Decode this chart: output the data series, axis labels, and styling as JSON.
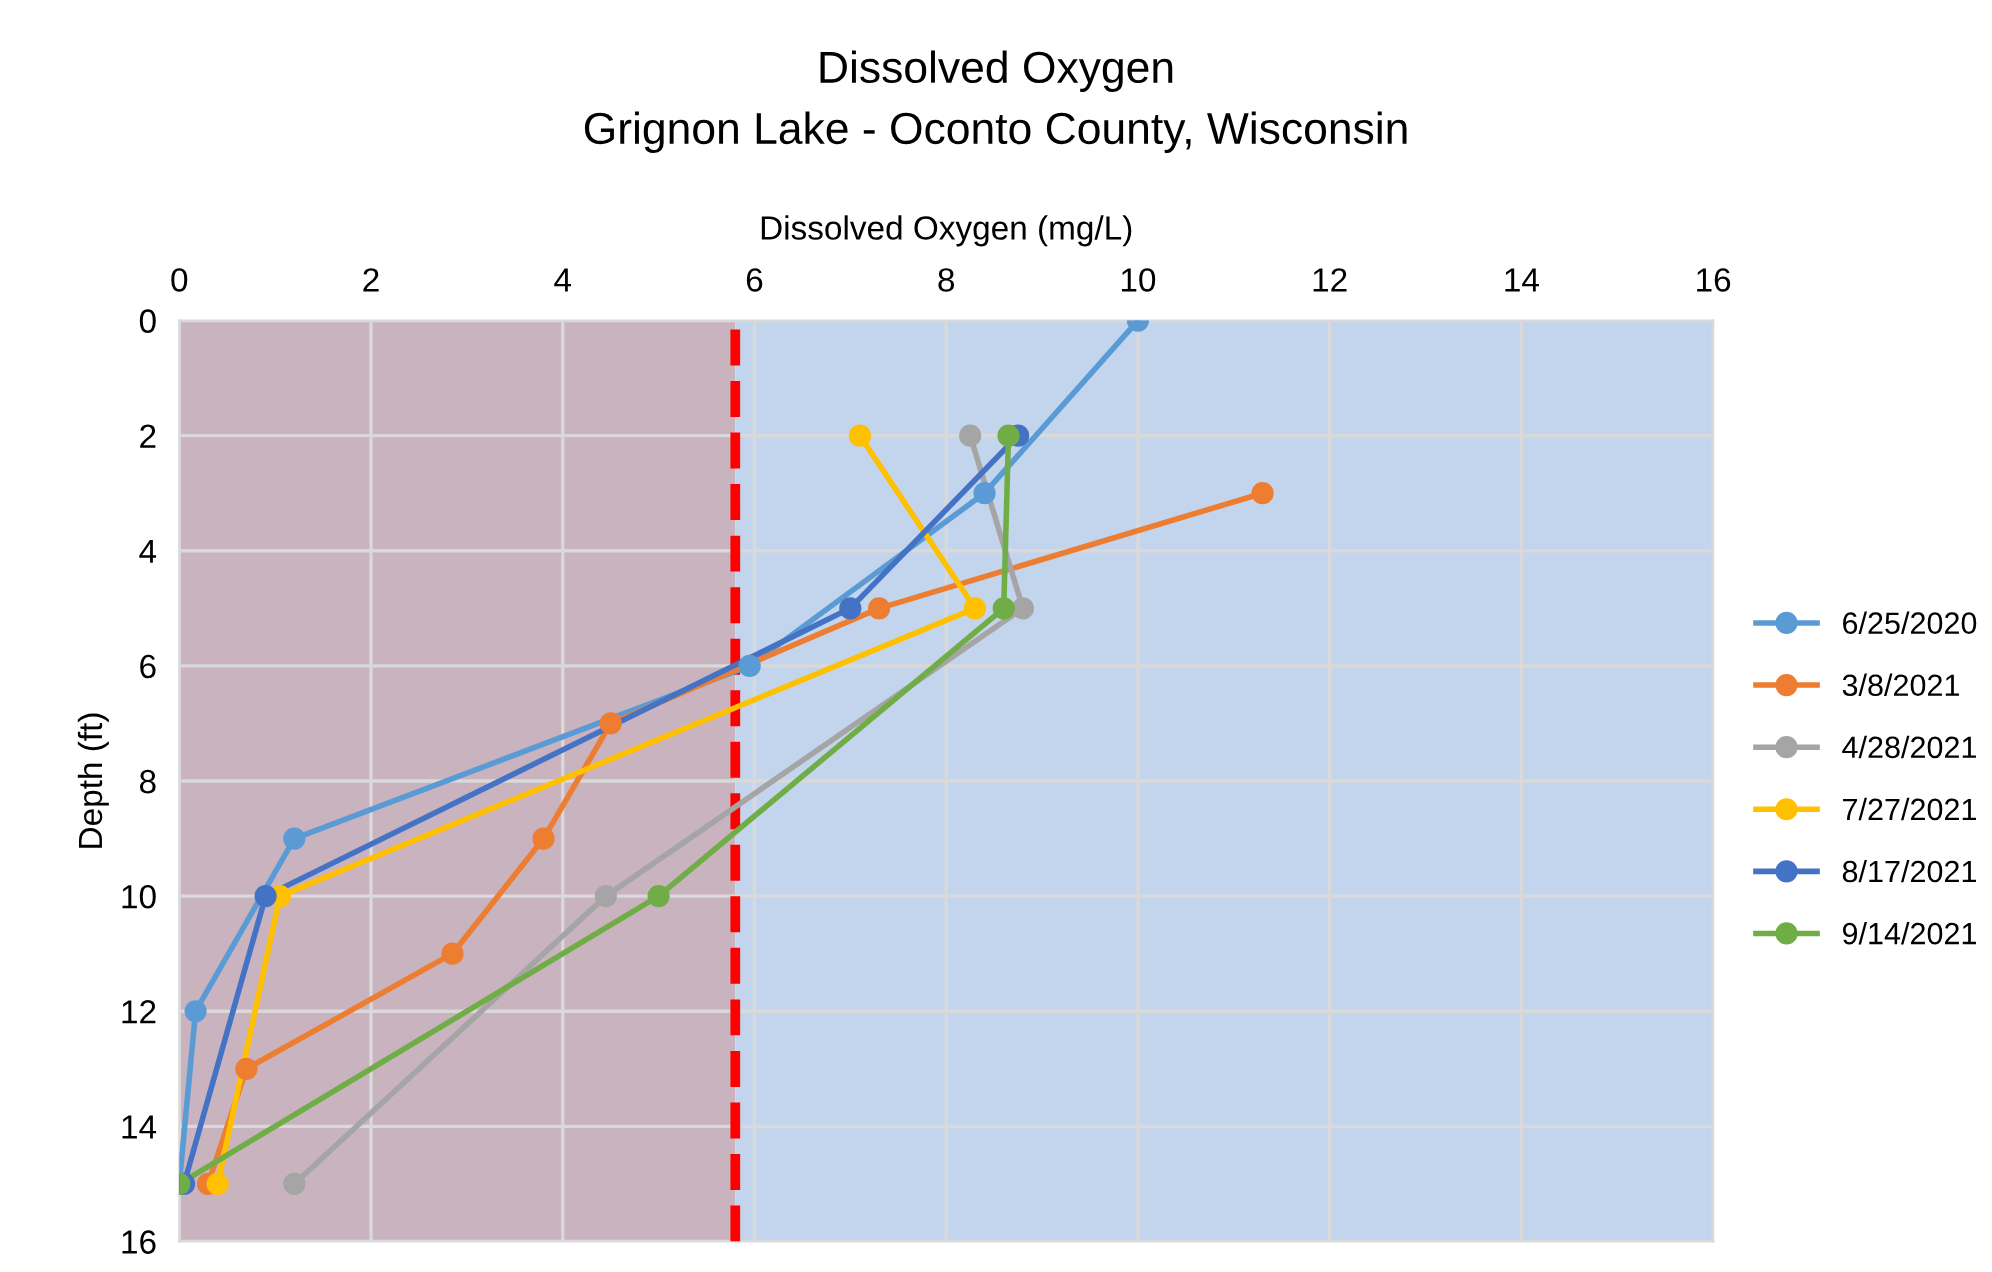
{
  "chart_data": {
    "type": "line",
    "title": "Dissolved Oxygen",
    "subtitle": "Grignon Lake - Oconto County, Wisconsin",
    "xlabel": "Dissolved Oxygen (mg/L)",
    "ylabel": "Depth (ft)",
    "xlim": [
      0,
      16
    ],
    "xticks": [
      0,
      2,
      4,
      6,
      8,
      10,
      12,
      14,
      16
    ],
    "ylim": [
      16,
      0
    ],
    "yticks": [
      0,
      2,
      4,
      6,
      8,
      10,
      12,
      14,
      16
    ],
    "grid": true,
    "legend": "right",
    "marker": "circle",
    "line_style": "solid",
    "bands": [
      {
        "axis": "x",
        "from": 0,
        "to": 5.8,
        "color": "#c8b3bf"
      },
      {
        "axis": "x",
        "from": 5.8,
        "to": 16,
        "color": "#c2d5ec"
      }
    ],
    "ref_lines": [
      {
        "axis": "x",
        "value": 5.8,
        "color": "#ff0000",
        "line_style": "dashed"
      }
    ],
    "series": [
      {
        "name": "6/25/2020",
        "color": "#5b9bd5",
        "x": [
          10,
          8.4,
          5.95,
          1.2,
          0.17,
          0
        ],
        "values": [
          0,
          3,
          6,
          9,
          12,
          15
        ]
      },
      {
        "name": "3/8/2021",
        "color": "#ed7d31",
        "x": [
          11.3,
          7.3,
          4.5,
          3.8,
          2.85,
          0.7,
          0.3
        ],
        "values": [
          3,
          5,
          7,
          9,
          11,
          13,
          15
        ]
      },
      {
        "name": "4/28/2021",
        "color": "#a5a5a5",
        "x": [
          8.25,
          8.8,
          4.45,
          1.2
        ],
        "values": [
          2,
          5,
          10,
          15
        ]
      },
      {
        "name": "7/27/2021",
        "color": "#ffc000",
        "x": [
          7.1,
          8.3,
          1.05,
          0.4
        ],
        "values": [
          2,
          5,
          10,
          15
        ]
      },
      {
        "name": "8/17/2021",
        "color": "#4472c4",
        "x": [
          8.75,
          7.0,
          0.9,
          0.05
        ],
        "values": [
          2,
          5,
          10,
          15
        ]
      },
      {
        "name": "9/14/2021",
        "color": "#70ad47",
        "x": [
          8.65,
          8.6,
          5.0,
          0
        ],
        "values": [
          2,
          5,
          10,
          15
        ]
      }
    ]
  }
}
